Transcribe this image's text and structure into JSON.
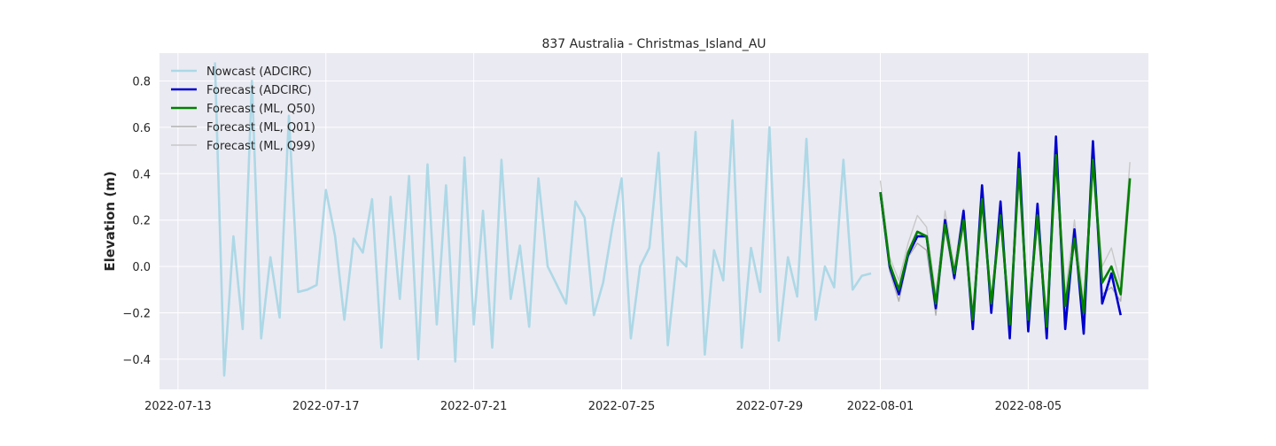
{
  "chart_data": {
    "type": "line",
    "title": "837 Australia - Christmas_Island_AU",
    "xlabel": "",
    "ylabel": "Elevation (m)",
    "x_type": "datetime",
    "xlim": [
      "2022-07-12T12:00",
      "2022-08-08T06:00"
    ],
    "ylim": [
      -0.53,
      0.92
    ],
    "x_ticks": [
      "2022-07-13",
      "2022-07-17",
      "2022-07-21",
      "2022-07-25",
      "2022-07-29",
      "2022-08-01",
      "2022-08-05"
    ],
    "y_ticks": [
      -0.4,
      -0.2,
      0.0,
      0.2,
      0.4,
      0.6,
      0.8
    ],
    "y_tick_labels": [
      "−0.4",
      "−0.2",
      "0.0",
      "0.2",
      "0.4",
      "0.6",
      "0.8"
    ],
    "grid": true,
    "legend_position": "top-left",
    "series": [
      {
        "name": "Nowcast (ADCIRC)",
        "color": "#add8e6",
        "x": [
          "2022-07-14T00:00",
          "2022-07-14T06:00",
          "2022-07-14T12:00",
          "2022-07-14T18:00",
          "2022-07-15T00:00",
          "2022-07-15T06:00",
          "2022-07-15T12:00",
          "2022-07-15T18:00",
          "2022-07-16T00:00",
          "2022-07-16T06:00",
          "2022-07-16T12:00",
          "2022-07-16T18:00",
          "2022-07-17T00:00",
          "2022-07-17T06:00",
          "2022-07-17T12:00",
          "2022-07-17T18:00",
          "2022-07-18T00:00",
          "2022-07-18T06:00",
          "2022-07-18T12:00",
          "2022-07-18T18:00",
          "2022-07-19T00:00",
          "2022-07-19T06:00",
          "2022-07-19T12:00",
          "2022-07-19T18:00",
          "2022-07-20T00:00",
          "2022-07-20T06:00",
          "2022-07-20T12:00",
          "2022-07-20T18:00",
          "2022-07-21T00:00",
          "2022-07-21T06:00",
          "2022-07-21T12:00",
          "2022-07-21T18:00",
          "2022-07-22T00:00",
          "2022-07-22T06:00",
          "2022-07-22T12:00",
          "2022-07-22T18:00",
          "2022-07-23T00:00",
          "2022-07-23T06:00",
          "2022-07-23T12:00",
          "2022-07-23T18:00",
          "2022-07-24T00:00",
          "2022-07-24T06:00",
          "2022-07-24T12:00",
          "2022-07-24T18:00",
          "2022-07-25T00:00",
          "2022-07-25T06:00",
          "2022-07-25T12:00",
          "2022-07-25T18:00",
          "2022-07-26T00:00",
          "2022-07-26T06:00",
          "2022-07-26T12:00",
          "2022-07-26T18:00",
          "2022-07-27T00:00",
          "2022-07-27T06:00",
          "2022-07-27T12:00",
          "2022-07-27T18:00",
          "2022-07-28T00:00",
          "2022-07-28T06:00",
          "2022-07-28T12:00",
          "2022-07-28T18:00",
          "2022-07-29T00:00",
          "2022-07-29T06:00",
          "2022-07-29T12:00",
          "2022-07-29T18:00",
          "2022-07-30T00:00",
          "2022-07-30T06:00",
          "2022-07-30T12:00",
          "2022-07-30T18:00",
          "2022-07-31T00:00",
          "2022-07-31T06:00",
          "2022-07-31T12:00",
          "2022-07-31T18:00"
        ],
        "values": [
          0.88,
          -0.47,
          0.13,
          -0.27,
          0.8,
          -0.31,
          0.04,
          -0.22,
          0.65,
          -0.11,
          -0.1,
          -0.08,
          0.33,
          0.13,
          -0.23,
          0.12,
          0.06,
          0.29,
          -0.35,
          0.3,
          -0.14,
          0.39,
          -0.4,
          0.44,
          -0.25,
          0.35,
          -0.41,
          0.47,
          -0.25,
          0.24,
          -0.35,
          0.46,
          -0.14,
          0.09,
          -0.26,
          0.38,
          0.0,
          -0.08,
          -0.16,
          0.28,
          0.21,
          -0.21,
          -0.07,
          0.17,
          0.38,
          -0.31,
          0.0,
          0.08,
          0.49,
          -0.34,
          0.04,
          0.0,
          0.58,
          -0.38,
          0.07,
          -0.06,
          0.63,
          -0.35,
          0.08,
          -0.11,
          0.6,
          -0.32,
          0.04,
          -0.13,
          0.55,
          -0.23,
          0.0,
          -0.09,
          0.46,
          -0.1,
          -0.04,
          -0.03
        ]
      },
      {
        "name": "Forecast (ADCIRC)",
        "color": "#0000cd",
        "x": [
          "2022-08-01T00:00",
          "2022-08-01T06:00",
          "2022-08-01T12:00",
          "2022-08-01T18:00",
          "2022-08-02T00:00",
          "2022-08-02T06:00",
          "2022-08-02T12:00",
          "2022-08-02T18:00",
          "2022-08-03T00:00",
          "2022-08-03T06:00",
          "2022-08-03T12:00",
          "2022-08-03T18:00",
          "2022-08-04T00:00",
          "2022-08-04T06:00",
          "2022-08-04T12:00",
          "2022-08-04T18:00",
          "2022-08-05T00:00",
          "2022-08-05T06:00",
          "2022-08-05T12:00",
          "2022-08-05T18:00",
          "2022-08-06T00:00",
          "2022-08-06T06:00",
          "2022-08-06T12:00",
          "2022-08-06T18:00",
          "2022-08-07T00:00",
          "2022-08-07T06:00",
          "2022-08-07T12:00"
        ],
        "values": [
          0.32,
          0.0,
          -0.12,
          0.05,
          0.13,
          0.13,
          -0.18,
          0.2,
          -0.05,
          0.24,
          -0.27,
          0.35,
          -0.2,
          0.28,
          -0.31,
          0.49,
          -0.28,
          0.27,
          -0.31,
          0.56,
          -0.27,
          0.16,
          -0.29,
          0.54,
          -0.16,
          -0.03,
          -0.21
        ]
      },
      {
        "name": "Forecast (ML, Q50)",
        "color": "#008000",
        "x": [
          "2022-08-01T00:00",
          "2022-08-01T06:00",
          "2022-08-01T12:00",
          "2022-08-01T18:00",
          "2022-08-02T00:00",
          "2022-08-02T06:00",
          "2022-08-02T12:00",
          "2022-08-02T18:00",
          "2022-08-03T00:00",
          "2022-08-03T06:00",
          "2022-08-03T12:00",
          "2022-08-03T18:00",
          "2022-08-04T00:00",
          "2022-08-04T06:00",
          "2022-08-04T12:00",
          "2022-08-04T18:00",
          "2022-08-05T00:00",
          "2022-08-05T06:00",
          "2022-08-05T12:00",
          "2022-08-05T18:00",
          "2022-08-06T00:00",
          "2022-08-06T06:00",
          "2022-08-06T12:00",
          "2022-08-06T18:00",
          "2022-08-07T00:00",
          "2022-08-07T06:00",
          "2022-08-07T12:00",
          "2022-08-07T18:00"
        ],
        "values": [
          0.32,
          0.01,
          -0.1,
          0.06,
          0.15,
          0.13,
          -0.16,
          0.18,
          -0.03,
          0.2,
          -0.23,
          0.29,
          -0.16,
          0.22,
          -0.25,
          0.42,
          -0.23,
          0.22,
          -0.26,
          0.48,
          -0.17,
          0.12,
          -0.2,
          0.46,
          -0.07,
          0.0,
          -0.12,
          0.38
        ]
      },
      {
        "name": "Forecast (ML, Q01)",
        "color": "#b0b0b0",
        "x": [
          "2022-08-01T00:00",
          "2022-08-01T06:00",
          "2022-08-01T12:00",
          "2022-08-01T18:00",
          "2022-08-02T00:00",
          "2022-08-02T06:00",
          "2022-08-02T12:00",
          "2022-08-02T18:00",
          "2022-08-03T00:00",
          "2022-08-03T06:00",
          "2022-08-03T12:00",
          "2022-08-03T18:00",
          "2022-08-04T00:00",
          "2022-08-04T06:00",
          "2022-08-04T12:00",
          "2022-08-04T18:00",
          "2022-08-05T00:00",
          "2022-08-05T06:00",
          "2022-08-05T12:00",
          "2022-08-05T18:00",
          "2022-08-06T00:00",
          "2022-08-06T06:00",
          "2022-08-06T12:00",
          "2022-08-06T18:00",
          "2022-08-07T00:00",
          "2022-08-07T06:00",
          "2022-08-07T12:00",
          "2022-08-07T18:00"
        ],
        "values": [
          0.3,
          -0.02,
          -0.15,
          0.04,
          0.1,
          0.07,
          -0.21,
          0.16,
          -0.06,
          0.18,
          -0.27,
          0.27,
          -0.2,
          0.2,
          -0.29,
          0.4,
          -0.26,
          0.2,
          -0.3,
          0.45,
          -0.22,
          0.1,
          -0.24,
          0.43,
          -0.12,
          -0.09,
          -0.15,
          0.33
        ]
      },
      {
        "name": "Forecast (ML, Q99)",
        "color": "#c8c8c8",
        "x": [
          "2022-08-01T00:00",
          "2022-08-01T06:00",
          "2022-08-01T12:00",
          "2022-08-01T18:00",
          "2022-08-02T00:00",
          "2022-08-02T06:00",
          "2022-08-02T12:00",
          "2022-08-02T18:00",
          "2022-08-03T00:00",
          "2022-08-03T06:00",
          "2022-08-03T12:00",
          "2022-08-03T18:00",
          "2022-08-04T00:00",
          "2022-08-04T06:00",
          "2022-08-04T12:00",
          "2022-08-04T18:00",
          "2022-08-05T00:00",
          "2022-08-05T06:00",
          "2022-08-05T12:00",
          "2022-08-05T18:00",
          "2022-08-06T00:00",
          "2022-08-06T06:00",
          "2022-08-06T12:00",
          "2022-08-06T18:00",
          "2022-08-07T00:00",
          "2022-08-07T06:00",
          "2022-08-07T12:00",
          "2022-08-07T18:00"
        ],
        "values": [
          0.37,
          0.04,
          -0.06,
          0.1,
          0.22,
          0.17,
          -0.12,
          0.24,
          0.0,
          0.25,
          -0.2,
          0.32,
          -0.13,
          0.25,
          -0.22,
          0.45,
          -0.2,
          0.25,
          -0.22,
          0.52,
          -0.12,
          0.2,
          -0.16,
          0.5,
          0.0,
          0.08,
          -0.08,
          0.45
        ]
      }
    ]
  }
}
